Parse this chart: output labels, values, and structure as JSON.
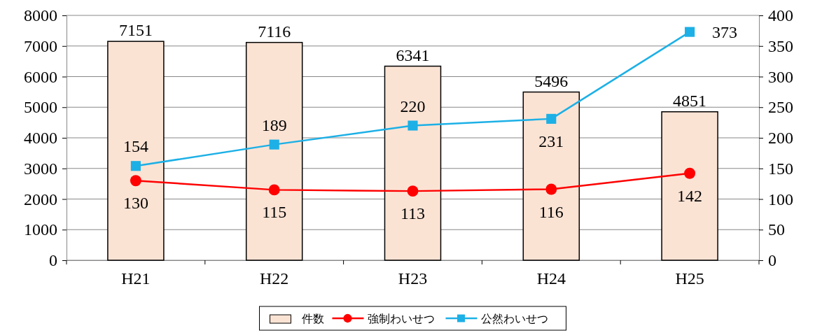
{
  "chart_data": {
    "type": "bar",
    "categories": [
      "H21",
      "H22",
      "H23",
      "H24",
      "H25"
    ],
    "series": [
      {
        "name": "件数",
        "color": "#fbe3d4",
        "values": [
          7151,
          7116,
          6341,
          5496,
          4851
        ]
      },
      {
        "name": "強制わいせつ",
        "type": "line",
        "axis": "y2",
        "marker": "circle",
        "color": "#ff0000",
        "values": [
          130,
          115,
          113,
          116,
          142
        ]
      },
      {
        "name": "公然わいせつ",
        "type": "line",
        "axis": "y2",
        "marker": "square",
        "color": "#1cb0e6",
        "values": [
          154,
          189,
          220,
          231,
          373
        ]
      }
    ],
    "ylim": [
      0,
      8000
    ],
    "yticks": [
      0,
      1000,
      2000,
      3000,
      4000,
      5000,
      6000,
      7000,
      8000
    ],
    "y2lim": [
      0,
      400
    ],
    "y2ticks": [
      0,
      50,
      100,
      150,
      200,
      250,
      300,
      350,
      400
    ],
    "grid": "y",
    "legend": "bottom",
    "data_labels": true
  }
}
